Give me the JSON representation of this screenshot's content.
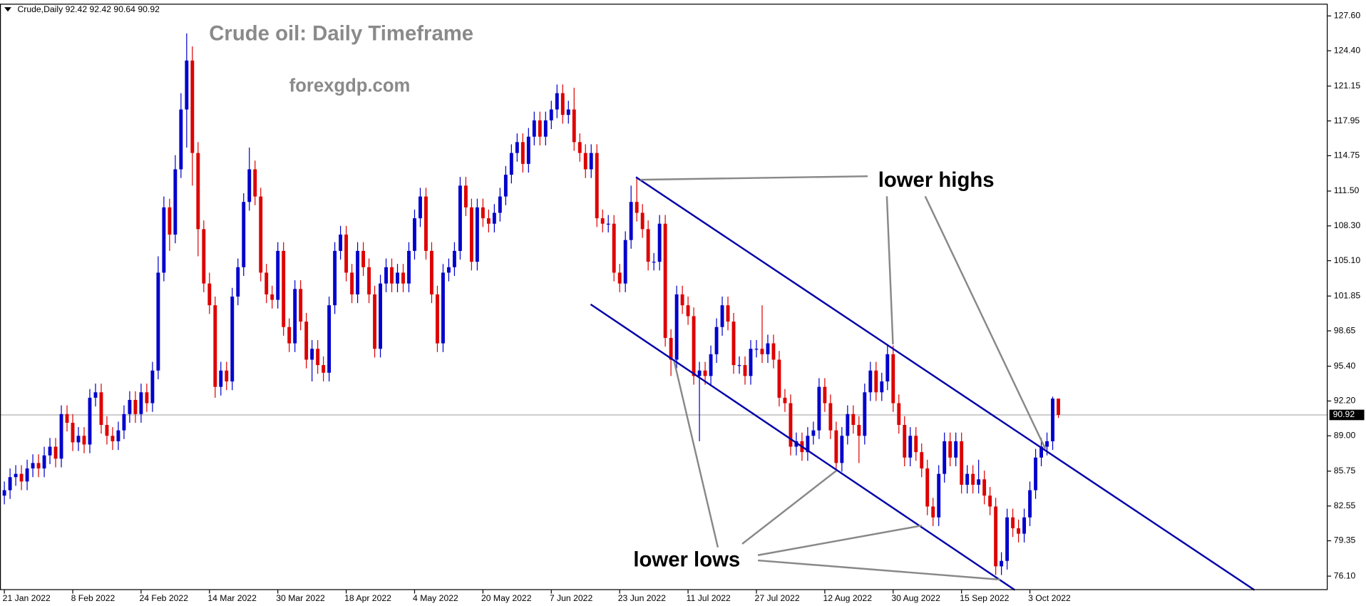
{
  "chart_data": {
    "type": "candlestick",
    "header": "Crude,Daily  92.42 92.42 90.64 90.92",
    "title": "Crude oil: Daily Timeframe",
    "watermark": "forexgdp.com",
    "annotations": [
      "lower highs",
      "lower lows"
    ],
    "bull_color": "#0000cc",
    "bear_color": "#dd0000",
    "last_price": 90.92,
    "ylim": [
      74.82,
      128.64
    ],
    "yticks": [
      {
        "value": 127.6,
        "label": "127.60"
      },
      {
        "value": 124.4,
        "label": "124.40"
      },
      121.15,
      117.95,
      114.75,
      {
        "value": 111.5,
        "label": "111.50"
      },
      {
        "value": 108.3,
        "label": "108.30"
      },
      {
        "value": 105.1,
        "label": "105.10"
      },
      101.85,
      98.65,
      {
        "value": 95.4,
        "label": "95.40"
      },
      {
        "value": 92.2,
        "label": "92.20"
      },
      {
        "value": 89,
        "label": "89.00"
      },
      85.75,
      82.55,
      79.35,
      {
        "value": 76.1,
        "label": "76.10"
      }
    ],
    "categories": [
      "21 Jan 2022",
      null,
      null,
      null,
      null,
      null,
      null,
      null,
      null,
      null,
      null,
      null,
      "8 Feb 2022",
      null,
      null,
      null,
      null,
      null,
      null,
      null,
      null,
      null,
      null,
      null,
      "24 Feb 2022",
      null,
      null,
      null,
      null,
      null,
      null,
      null,
      null,
      null,
      null,
      null,
      "14 Mar 2022",
      null,
      null,
      null,
      null,
      null,
      null,
      null,
      null,
      null,
      null,
      null,
      "30 Mar 2022",
      null,
      null,
      null,
      null,
      null,
      null,
      null,
      null,
      null,
      null,
      null,
      "18 Apr 2022",
      null,
      null,
      null,
      null,
      null,
      null,
      null,
      null,
      null,
      null,
      null,
      "4 May 2022",
      null,
      null,
      null,
      null,
      null,
      null,
      null,
      null,
      null,
      null,
      null,
      "20 May 2022",
      null,
      null,
      null,
      null,
      null,
      null,
      null,
      null,
      null,
      null,
      null,
      "7 Jun 2022",
      null,
      null,
      null,
      null,
      null,
      null,
      null,
      null,
      null,
      null,
      null,
      "23 Jun 2022",
      null,
      null,
      null,
      null,
      null,
      null,
      null,
      null,
      null,
      null,
      null,
      "11 Jul 2022",
      null,
      null,
      null,
      null,
      null,
      null,
      null,
      null,
      null,
      null,
      null,
      "27 Jul 2022",
      null,
      null,
      null,
      null,
      null,
      null,
      null,
      null,
      null,
      null,
      null,
      "12 Aug 2022",
      null,
      null,
      null,
      null,
      null,
      null,
      null,
      null,
      null,
      null,
      null,
      "30 Aug 2022",
      null,
      null,
      null,
      null,
      null,
      null,
      null,
      null,
      null,
      null,
      null,
      "15 Sep 2022",
      null,
      null,
      null,
      null,
      null,
      null,
      null,
      null,
      null,
      null,
      null,
      "3 Oct 2022",
      null,
      null,
      null,
      null,
      null
    ],
    "ohlc": [
      [
        83.5,
        84.8,
        82.7,
        84.0
      ],
      [
        84.0,
        86.0,
        83.2,
        85.2
      ],
      [
        85.2,
        86.3,
        84.4,
        85.5
      ],
      [
        85.5,
        86.3,
        84.0,
        84.8
      ],
      [
        84.8,
        86.8,
        84.0,
        86.0
      ],
      [
        86.0,
        87.3,
        85.2,
        86.5
      ],
      [
        86.5,
        87.3,
        85.2,
        86.0
      ],
      [
        86.0,
        88.0,
        85.2,
        87.2
      ],
      [
        87.2,
        88.8,
        86.4,
        88.0
      ],
      [
        88.0,
        88.8,
        86.1,
        86.9
      ],
      [
        86.9,
        91.8,
        86.1,
        91.0
      ],
      [
        91.0,
        91.8,
        89.4,
        90.2
      ],
      [
        90.2,
        91.0,
        87.6,
        88.4
      ],
      [
        88.4,
        89.8,
        87.6,
        89.0
      ],
      [
        89.0,
        89.8,
        87.4,
        88.2
      ],
      [
        88.2,
        93.3,
        87.4,
        92.5
      ],
      [
        92.5,
        93.8,
        91.7,
        93.0
      ],
      [
        93.0,
        93.8,
        89.2,
        90.0
      ],
      [
        90.0,
        90.8,
        88.2,
        89.0
      ],
      [
        89.0,
        89.8,
        87.7,
        88.5
      ],
      [
        88.5,
        90.3,
        87.7,
        89.5
      ],
      [
        89.5,
        91.8,
        88.7,
        91.0
      ],
      [
        91.0,
        93.1,
        90.2,
        92.3
      ],
      [
        92.3,
        93.1,
        90.2,
        91.0
      ],
      [
        91.0,
        93.8,
        90.2,
        93.0
      ],
      [
        93.0,
        93.8,
        91.2,
        92.0
      ],
      [
        92.0,
        95.8,
        91.2,
        95.0
      ],
      [
        95.0,
        105.5,
        94.2,
        104.0
      ],
      [
        104.0,
        111.0,
        103.2,
        110.0
      ],
      [
        110.0,
        110.8,
        106.0,
        107.5
      ],
      [
        107.5,
        114.8,
        106.7,
        113.5
      ],
      [
        113.5,
        120.5,
        112.7,
        119.0
      ],
      [
        119.0,
        126.0,
        115.5,
        123.5
      ],
      [
        123.5,
        124.8,
        112.0,
        115.0
      ],
      [
        115.0,
        116.0,
        105.5,
        108.0
      ],
      [
        108.0,
        108.8,
        102.2,
        103.0
      ],
      [
        103.0,
        104.0,
        100.2,
        101.0
      ],
      [
        101.0,
        101.8,
        92.5,
        93.5
      ],
      [
        93.5,
        95.8,
        92.7,
        95.0
      ],
      [
        95.0,
        95.8,
        93.2,
        94.0
      ],
      [
        94.0,
        102.6,
        93.2,
        101.8
      ],
      [
        101.8,
        105.3,
        101.0,
        104.5
      ],
      [
        104.5,
        111.3,
        103.7,
        110.5
      ],
      [
        110.5,
        115.5,
        109.7,
        113.5
      ],
      [
        113.5,
        114.3,
        110.2,
        111.0
      ],
      [
        111.0,
        111.8,
        103.2,
        104.0
      ],
      [
        104.0,
        104.8,
        101.2,
        102.0
      ],
      [
        102.0,
        102.8,
        100.7,
        101.5
      ],
      [
        101.5,
        106.8,
        100.7,
        106.0
      ],
      [
        106.0,
        106.8,
        98.2,
        99.0
      ],
      [
        99.0,
        99.8,
        96.7,
        97.5
      ],
      [
        97.5,
        103.3,
        96.7,
        102.5
      ],
      [
        102.5,
        103.3,
        98.7,
        99.5
      ],
      [
        99.5,
        100.3,
        95.2,
        96.0
      ],
      [
        96.0,
        97.8,
        94.0,
        97.0
      ],
      [
        97.0,
        97.8,
        94.7,
        95.5
      ],
      [
        95.5,
        96.3,
        94.0,
        94.8
      ],
      [
        94.8,
        101.8,
        94.0,
        101.0
      ],
      [
        101.0,
        106.8,
        100.2,
        106.0
      ],
      [
        106.0,
        108.3,
        105.2,
        107.5
      ],
      [
        107.5,
        108.3,
        103.2,
        104.0
      ],
      [
        104.0,
        104.8,
        101.2,
        102.0
      ],
      [
        102.0,
        106.8,
        101.2,
        106.0
      ],
      [
        106.0,
        106.8,
        103.7,
        104.5
      ],
      [
        104.5,
        105.3,
        101.2,
        102.0
      ],
      [
        102.0,
        102.8,
        96.2,
        97.0
      ],
      [
        97.0,
        103.8,
        96.2,
        103.0
      ],
      [
        103.0,
        105.3,
        102.2,
        104.5
      ],
      [
        104.5,
        105.3,
        102.2,
        103.0
      ],
      [
        103.0,
        104.8,
        102.2,
        104.0
      ],
      [
        104.0,
        104.8,
        102.2,
        103.0
      ],
      [
        103.0,
        106.8,
        102.2,
        106.0
      ],
      [
        106.0,
        109.8,
        105.2,
        109.0
      ],
      [
        109.0,
        111.8,
        108.2,
        111.0
      ],
      [
        111.0,
        111.8,
        105.2,
        106.0
      ],
      [
        106.0,
        106.8,
        101.2,
        102.0
      ],
      [
        102.0,
        102.8,
        96.7,
        97.5
      ],
      [
        97.5,
        104.8,
        96.7,
        104.0
      ],
      [
        104.0,
        105.3,
        103.2,
        104.5
      ],
      [
        104.5,
        106.8,
        103.7,
        106.0
      ],
      [
        106.0,
        112.8,
        105.2,
        112.0
      ],
      [
        112.0,
        112.8,
        109.2,
        110.0
      ],
      [
        110.0,
        110.8,
        104.2,
        105.0
      ],
      [
        105.0,
        110.8,
        104.2,
        110.0
      ],
      [
        110.0,
        110.8,
        108.2,
        109.0
      ],
      [
        109.0,
        109.8,
        107.7,
        108.5
      ],
      [
        108.5,
        110.3,
        107.7,
        109.5
      ],
      [
        109.5,
        111.8,
        108.7,
        111.0
      ],
      [
        111.0,
        113.8,
        110.2,
        113.0
      ],
      [
        113.0,
        115.8,
        112.2,
        115.0
      ],
      [
        115.0,
        116.8,
        114.2,
        116.0
      ],
      [
        116.0,
        116.8,
        113.2,
        114.0
      ],
      [
        114.0,
        117.3,
        113.2,
        116.5
      ],
      [
        116.5,
        118.8,
        115.7,
        118.0
      ],
      [
        118.0,
        118.8,
        115.7,
        116.5
      ],
      [
        116.5,
        118.8,
        115.7,
        118.0
      ],
      [
        118.0,
        119.8,
        117.2,
        119.0
      ],
      [
        119.0,
        121.3,
        118.2,
        120.5
      ],
      [
        120.5,
        121.3,
        117.7,
        118.5
      ],
      [
        118.5,
        119.8,
        117.7,
        119.0
      ],
      [
        119.0,
        121.0,
        115.2,
        116.0
      ],
      [
        116.0,
        116.8,
        114.2,
        115.0
      ],
      [
        115.0,
        115.8,
        112.7,
        113.5
      ],
      [
        113.5,
        115.8,
        112.7,
        115.0
      ],
      [
        115.0,
        115.8,
        108.2,
        109.0
      ],
      [
        109.0,
        109.8,
        107.7,
        108.5
      ],
      [
        108.5,
        109.3,
        107.7,
        108.5
      ],
      [
        108.5,
        109.3,
        103.2,
        104.0
      ],
      [
        104.0,
        104.8,
        102.2,
        103.0
      ],
      [
        103.0,
        107.8,
        102.2,
        107.0
      ],
      [
        107.0,
        112.0,
        106.2,
        110.5
      ],
      [
        110.5,
        112.8,
        108.7,
        109.5
      ],
      [
        109.5,
        110.3,
        107.2,
        108.0
      ],
      [
        108.0,
        108.8,
        104.2,
        105.0
      ],
      [
        105.0,
        105.8,
        104.2,
        105.0
      ],
      [
        105.0,
        109.3,
        104.2,
        108.5
      ],
      [
        108.5,
        109.3,
        97.2,
        98.0
      ],
      [
        98.0,
        98.8,
        94.5,
        96.0
      ],
      [
        96.0,
        102.8,
        95.2,
        102.0
      ],
      [
        102.0,
        102.8,
        100.2,
        101.0
      ],
      [
        101.0,
        101.8,
        99.2,
        100.0
      ],
      [
        100.0,
        100.8,
        93.7,
        94.5
      ],
      [
        94.5,
        95.8,
        88.5,
        95.0
      ],
      [
        95.0,
        95.8,
        93.7,
        94.5
      ],
      [
        94.5,
        97.3,
        93.7,
        96.5
      ],
      [
        96.5,
        99.8,
        95.7,
        99.0
      ],
      [
        99.0,
        101.8,
        98.2,
        101.0
      ],
      [
        101.0,
        101.8,
        98.7,
        99.5
      ],
      [
        99.5,
        100.3,
        94.7,
        95.5
      ],
      [
        95.5,
        96.3,
        94.7,
        95.5
      ],
      [
        95.5,
        96.3,
        93.7,
        94.5
      ],
      [
        94.5,
        97.8,
        93.7,
        97.0
      ],
      [
        97.0,
        97.8,
        96.2,
        97.0
      ],
      [
        97.0,
        101.0,
        95.7,
        96.5
      ],
      [
        96.5,
        98.3,
        95.7,
        97.5
      ],
      [
        97.5,
        98.3,
        95.2,
        96.0
      ],
      [
        96.0,
        96.8,
        91.7,
        92.5
      ],
      [
        92.5,
        93.3,
        91.2,
        92.0
      ],
      [
        92.0,
        92.8,
        87.2,
        88.0
      ],
      [
        88.0,
        89.3,
        87.2,
        88.5
      ],
      [
        88.5,
        89.3,
        86.7,
        87.5
      ],
      [
        87.5,
        89.8,
        86.7,
        89.0
      ],
      [
        89.0,
        90.3,
        88.2,
        89.5
      ],
      [
        89.5,
        94.3,
        88.7,
        93.5
      ],
      [
        93.5,
        94.3,
        91.2,
        92.0
      ],
      [
        92.0,
        92.8,
        88.7,
        89.5
      ],
      [
        89.5,
        90.3,
        85.7,
        86.5
      ],
      [
        86.5,
        89.8,
        85.7,
        89.0
      ],
      [
        89.0,
        91.8,
        88.2,
        91.0
      ],
      [
        91.0,
        91.8,
        89.2,
        90.0
      ],
      [
        90.0,
        90.8,
        86.5,
        89.0
      ],
      [
        89.0,
        93.8,
        88.2,
        93.0
      ],
      [
        93.0,
        95.8,
        92.2,
        95.0
      ],
      [
        95.0,
        95.8,
        92.2,
        93.0
      ],
      [
        93.0,
        94.8,
        92.2,
        94.0
      ],
      [
        94.0,
        97.3,
        93.2,
        96.5
      ],
      [
        96.5,
        97.3,
        91.2,
        92.0
      ],
      [
        92.0,
        92.8,
        89.2,
        90.0
      ],
      [
        90.0,
        90.8,
        86.2,
        87.0
      ],
      [
        87.0,
        89.8,
        86.2,
        89.0
      ],
      [
        89.0,
        89.8,
        86.7,
        87.5
      ],
      [
        87.5,
        88.3,
        85.2,
        86.0
      ],
      [
        86.0,
        86.8,
        81.7,
        82.5
      ],
      [
        82.5,
        83.3,
        80.7,
        81.5
      ],
      [
        81.5,
        86.3,
        80.7,
        85.5
      ],
      [
        85.5,
        89.3,
        84.7,
        88.5
      ],
      [
        88.5,
        89.3,
        86.2,
        87.0
      ],
      [
        87.0,
        89.3,
        86.2,
        88.5
      ],
      [
        88.5,
        89.3,
        83.7,
        84.5
      ],
      [
        84.5,
        86.3,
        83.7,
        85.5
      ],
      [
        85.5,
        86.3,
        83.7,
        84.5
      ],
      [
        84.5,
        86.8,
        83.7,
        85.0
      ],
      [
        85.0,
        85.8,
        82.7,
        83.5
      ],
      [
        83.5,
        84.3,
        81.7,
        82.5
      ],
      [
        82.5,
        83.3,
        76.2,
        77.0
      ],
      [
        77.0,
        78.3,
        76.2,
        77.5
      ],
      [
        77.5,
        82.3,
        76.7,
        81.5
      ],
      [
        81.5,
        82.3,
        79.7,
        80.5
      ],
      [
        80.5,
        81.3,
        79.2,
        80.0
      ],
      [
        80.0,
        82.3,
        79.2,
        81.5
      ],
      [
        81.5,
        84.8,
        80.7,
        84.0
      ],
      [
        84.0,
        87.8,
        83.2,
        87.0
      ],
      [
        87.0,
        88.8,
        86.2,
        88.0
      ],
      [
        88.0,
        89.3,
        87.2,
        88.5
      ],
      [
        88.5,
        92.6,
        87.7,
        92.42
      ],
      [
        92.42,
        92.42,
        90.64,
        90.92
      ]
    ]
  }
}
